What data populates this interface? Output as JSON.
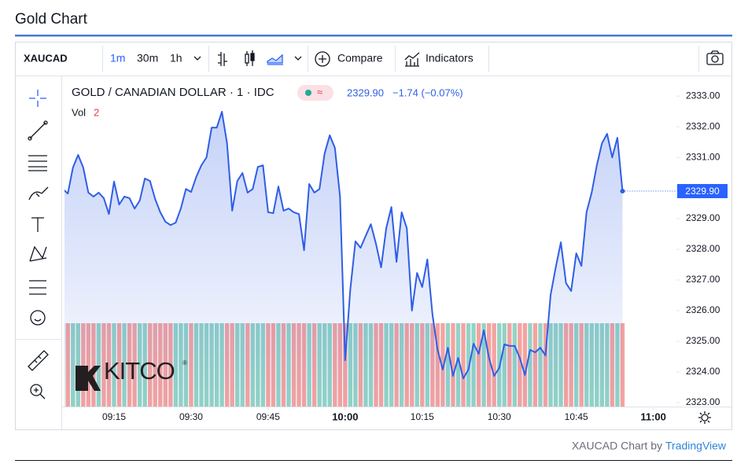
{
  "page_title": "Gold Chart",
  "toolbar": {
    "symbol": "XAUCAD",
    "intervals": [
      "1m",
      "30m",
      "1h"
    ],
    "compare": "Compare",
    "indicators": "Indicators"
  },
  "legend": {
    "instrument": "GOLD / CANADIAN DOLLAR · 1 · IDC",
    "price": "2329.90",
    "change": "−1.74 (−0.07%)",
    "volume_label": "Vol",
    "volume_length": "2"
  },
  "watermark": "KITCO",
  "footer": {
    "text": "XAUCAD Chart by",
    "link": "TradingView"
  },
  "chart_data": {
    "type": "line",
    "x": [
      545,
      546,
      547,
      548,
      549,
      550,
      551,
      552,
      553,
      554,
      555,
      556,
      557,
      558,
      559,
      560,
      561,
      562,
      563,
      564,
      565,
      566,
      567,
      568,
      569,
      570,
      571,
      572,
      573,
      574,
      575,
      576,
      577,
      578,
      579,
      580,
      581,
      582,
      583,
      584,
      585,
      586,
      587,
      588,
      589,
      590,
      591,
      592,
      593,
      594,
      595,
      596,
      597,
      598,
      599,
      600,
      601,
      602,
      603,
      604,
      605,
      606,
      607,
      608,
      609,
      610,
      611,
      612,
      613,
      614,
      615,
      616,
      617,
      618,
      619,
      620,
      621,
      622,
      623,
      624,
      625,
      626,
      627,
      628,
      629,
      630,
      631,
      632,
      633,
      634,
      635,
      636,
      637,
      638,
      639,
      640,
      641,
      642,
      643,
      644,
      645,
      646,
      647,
      648,
      649,
      650,
      651,
      652,
      653,
      654
    ],
    "series": [
      {
        "name": "GOLD / CANADIAN DOLLAR",
        "color": "#2f5ee6",
        "up_color": "#93d3c6",
        "down_color": "#f4a3a0",
        "values": [
          2329.97,
          2329.82,
          2330.67,
          2331.08,
          2330.67,
          2329.85,
          2329.72,
          2329.85,
          2329.67,
          2329.15,
          2330.21,
          2329.46,
          2329.72,
          2329.67,
          2329.33,
          2329.59,
          2330.31,
          2330.23,
          2329.64,
          2329.21,
          2328.9,
          2328.79,
          2328.87,
          2329.33,
          2329.97,
          2329.87,
          2330.36,
          2330.74,
          2331.0,
          2331.97,
          2331.97,
          2332.49,
          2331.46,
          2329.26,
          2330.23,
          2330.49,
          2329.85,
          2329.97,
          2330.69,
          2330.74,
          2329.21,
          2329.18,
          2330.05,
          2329.26,
          2329.33,
          2329.21,
          2329.15,
          2327.97,
          2330.13,
          2329.85,
          2329.97,
          2331.13,
          2331.72,
          2331.31,
          2329.72,
          2324.38,
          2326.69,
          2328.26,
          2328.05,
          2328.44,
          2328.82,
          2328.18,
          2327.41,
          2328.69,
          2329.38,
          2327.59,
          2329.21,
          2328.69,
          2326.0,
          2327.23,
          2326.77,
          2327.67,
          2325.87,
          2324.72,
          2324.08,
          2324.79,
          2323.87,
          2324.46,
          2323.79,
          2324.08,
          2324.92,
          2324.59,
          2325.36,
          2324.46,
          2323.87,
          2324.13,
          2324.9,
          2324.85,
          2324.85,
          2324.46,
          2323.9,
          2324.72,
          2324.64,
          2324.79,
          2324.54,
          2326.51,
          2327.41,
          2328.23,
          2326.9,
          2326.64,
          2327.87,
          2327.46,
          2329.21,
          2329.85,
          2330.74,
          2331.46,
          2331.77,
          2331.0,
          2331.64,
          2329.9
        ]
      }
    ],
    "xlim": [
      545.35,
      664.5
    ],
    "xticks": [
      {
        "value": 555,
        "label": "09:15"
      },
      {
        "value": 570,
        "label": "09:30"
      },
      {
        "value": 585,
        "label": "09:45"
      },
      {
        "value": 600,
        "label": "10:00"
      },
      {
        "value": 615,
        "label": "10:15"
      },
      {
        "value": 630,
        "label": "10:30"
      },
      {
        "value": 645,
        "label": "10:45"
      },
      {
        "value": 660,
        "label": "11:00"
      }
    ],
    "bold_xticks": [
      600,
      660
    ],
    "ylim": [
      2322.87,
      2333.62
    ],
    "yticks": [
      {
        "value": 2323,
        "label": "2323.00"
      },
      {
        "value": 2324,
        "label": "2324.00"
      },
      {
        "value": 2325,
        "label": "2325.00"
      },
      {
        "value": 2326,
        "label": "2326.00"
      },
      {
        "value": 2327,
        "label": "2327.00"
      },
      {
        "value": 2328,
        "label": "2328.00"
      },
      {
        "value": 2329,
        "label": "2329.00"
      },
      {
        "value": 2330,
        "label": "2330.00"
      },
      {
        "value": 2331,
        "label": "2331.00"
      },
      {
        "value": 2332,
        "label": "2332.00"
      },
      {
        "value": 2333,
        "label": "2333.00"
      }
    ],
    "grid": false
  }
}
